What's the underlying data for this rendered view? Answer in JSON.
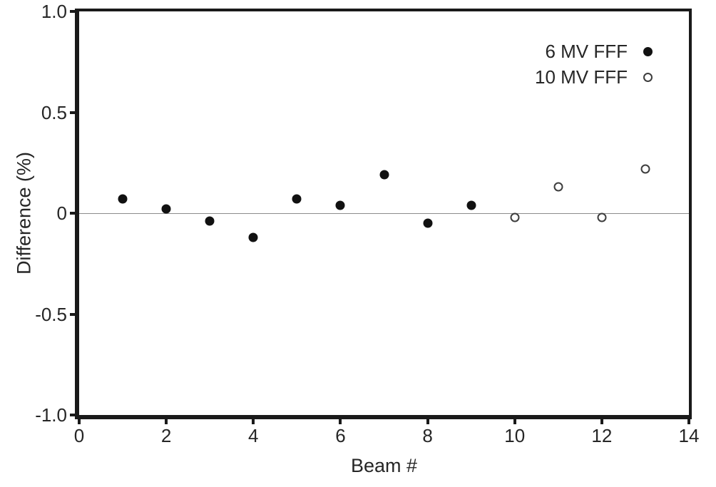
{
  "colors": {
    "axis": "#1a1a1a",
    "text": "#262626",
    "zero_line": "#8c8c8c",
    "series_filled": "#111111",
    "series_open_stroke": "#3d3d3d",
    "background": "#ffffff"
  },
  "chart_data": {
    "type": "scatter",
    "title": "",
    "xlabel": "Beam #",
    "ylabel": "Difference (%)",
    "xlim": [
      0,
      14
    ],
    "ylim": [
      -1.0,
      1.0
    ],
    "x_ticks": [
      0,
      2,
      4,
      6,
      8,
      10,
      12,
      14
    ],
    "y_ticks": [
      {
        "value": 1.0,
        "label": "1.0"
      },
      {
        "value": 0.5,
        "label": "0.5"
      },
      {
        "value": 0,
        "label": "0"
      },
      {
        "value": -0.5,
        "label": "-0.5"
      },
      {
        "value": -1.0,
        "label": "-1.0"
      }
    ],
    "grid": false,
    "zero_reference_line": true,
    "legend_position": "inside-top-right",
    "series": [
      {
        "name": "6 MV FFF",
        "marker": "filled-circle",
        "color": "#111111",
        "x": [
          1,
          2,
          3,
          4,
          5,
          6,
          7,
          8,
          9
        ],
        "y": [
          0.07,
          0.02,
          -0.04,
          -0.12,
          0.07,
          0.04,
          0.19,
          -0.05,
          0.04
        ]
      },
      {
        "name": "10 MV FFF",
        "marker": "open-circle",
        "color": "#3d3d3d",
        "x": [
          10,
          11,
          12,
          13
        ],
        "y": [
          -0.02,
          0.13,
          -0.02,
          0.22
        ]
      }
    ]
  }
}
